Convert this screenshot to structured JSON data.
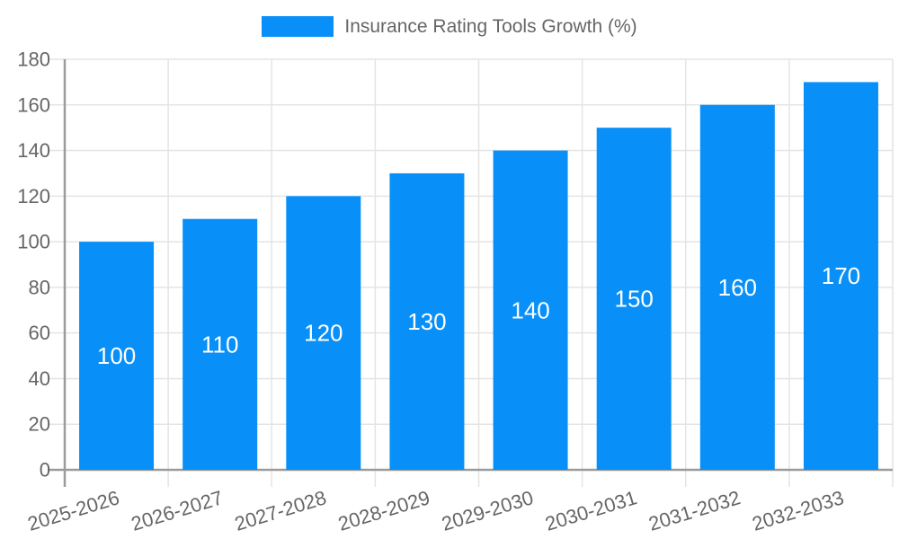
{
  "legend": {
    "label": "Insurance Rating Tools Growth (%)"
  },
  "chart_data": {
    "type": "bar",
    "title": "",
    "categories": [
      "2025-2026",
      "2026-2027",
      "2027-2028",
      "2028-2029",
      "2029-2030",
      "2030-2031",
      "2031-2032",
      "2032-2033"
    ],
    "values": [
      100,
      110,
      120,
      130,
      140,
      150,
      160,
      170
    ],
    "series": [
      {
        "name": "Insurance Rating Tools Growth (%)",
        "values": [
          100,
          110,
          120,
          130,
          140,
          150,
          160,
          170
        ]
      }
    ],
    "xlabel": "",
    "ylabel": "",
    "ylim": [
      0,
      180
    ],
    "ytick_step": 20,
    "yticks": [
      0,
      20,
      40,
      60,
      80,
      100,
      120,
      140,
      160,
      180
    ],
    "grid": true,
    "legend_position": "top",
    "value_labels": "inside-center",
    "x_label_rotation_deg": -17
  },
  "colors": {
    "bar": "#0890f8",
    "bar_value_label": "#ffffff",
    "tick_label": "#666666",
    "legend_text": "#666666",
    "axis_line": "#9b9b9b",
    "grid_line": "#e4e4e4",
    "background": "#ffffff"
  }
}
